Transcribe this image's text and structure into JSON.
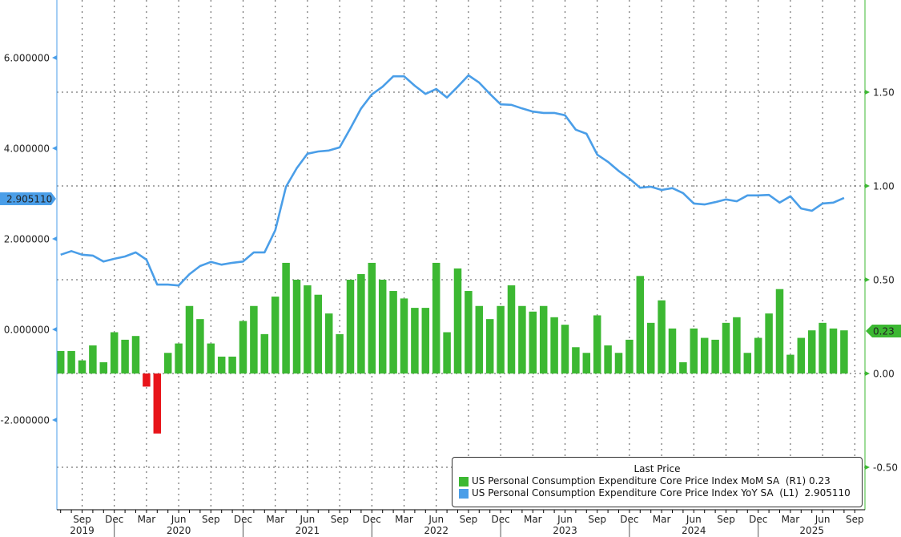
{
  "chart_data": {
    "type": "bar+line",
    "title": "",
    "colors": {
      "bars_positive": "#3cb832",
      "bars_negative": "#e8141a",
      "line": "#4a9ee8",
      "left_axis": "#4a9ee8",
      "right_axis": "#3cb832"
    },
    "x_start": "2019-07",
    "x_end": "2025-08",
    "left_axis": {
      "label": "L1",
      "ylim": [
        -3.0,
        7.0
      ],
      "ticks": [
        "6.000000",
        "4.000000",
        "2.000000",
        "0.000000",
        "-2.000000"
      ],
      "tick_values": [
        6,
        4,
        2,
        0,
        -2
      ]
    },
    "right_axis": {
      "label": "R1",
      "ylim": [
        -0.72,
        1.99
      ],
      "ticks": [
        "1.50",
        "1.00",
        "0.50",
        "0.00",
        "-0.50"
      ],
      "tick_values": [
        1.5,
        1.0,
        0.5,
        0.0,
        -0.5
      ]
    },
    "x_month_labels": [
      "Sep",
      "Dec",
      "Mar",
      "Jun",
      "Sep",
      "Dec",
      "Mar",
      "Jun",
      "Sep",
      "Dec",
      "Mar",
      "Jun",
      "Sep",
      "Dec",
      "Mar",
      "Jun",
      "Sep",
      "Dec",
      "Mar",
      "Jun",
      "Sep",
      "Dec",
      "Mar",
      "Jun",
      "Sep"
    ],
    "x_month_indices": [
      2,
      5,
      8,
      11,
      14,
      17,
      20,
      23,
      26,
      29,
      32,
      35,
      38,
      41,
      44,
      47,
      50,
      53,
      56,
      59,
      62,
      65,
      68,
      71,
      74
    ],
    "x_year_labels": [
      "2019",
      "2020",
      "2021",
      "2022",
      "2023",
      "2024",
      "2025"
    ],
    "x_year_center_indices": [
      2,
      11,
      23,
      35,
      47,
      59,
      70
    ],
    "x_year_separator_indices": [
      5,
      17,
      29,
      41,
      53,
      65
    ],
    "series": [
      {
        "name": "US Personal Consumption Expenditure Core Price Index MoM SA",
        "axis": "R1",
        "kind": "bar",
        "last_value": "0.23",
        "values": [
          0.12,
          0.12,
          0.07,
          0.15,
          0.06,
          0.22,
          0.18,
          0.2,
          -0.07,
          -0.32,
          0.11,
          0.16,
          0.36,
          0.29,
          0.16,
          0.09,
          0.09,
          0.28,
          0.36,
          0.21,
          0.41,
          0.59,
          0.5,
          0.47,
          0.42,
          0.32,
          0.21,
          0.5,
          0.53,
          0.59,
          0.5,
          0.44,
          0.4,
          0.35,
          0.35,
          0.59,
          0.22,
          0.56,
          0.44,
          0.36,
          0.29,
          0.36,
          0.47,
          0.36,
          0.33,
          0.36,
          0.3,
          0.26,
          0.14,
          0.11,
          0.31,
          0.15,
          0.11,
          0.18,
          0.52,
          0.27,
          0.39,
          0.24,
          0.06,
          0.24,
          0.19,
          0.18,
          0.27,
          0.3,
          0.11,
          0.19,
          0.32,
          0.45,
          0.1,
          0.19,
          0.23,
          0.27,
          0.24,
          0.23
        ]
      },
      {
        "name": "US Personal Consumption Expenditure Core Price Index YoY SA",
        "axis": "L1",
        "kind": "line",
        "last_value": "2.905110",
        "values": [
          1.65,
          1.73,
          1.65,
          1.63,
          1.5,
          1.56,
          1.61,
          1.7,
          1.54,
          0.99,
          0.99,
          0.97,
          1.22,
          1.4,
          1.49,
          1.43,
          1.47,
          1.5,
          1.7,
          1.7,
          2.19,
          3.15,
          3.56,
          3.88,
          3.93,
          3.95,
          4.02,
          4.44,
          4.88,
          5.19,
          5.36,
          5.59,
          5.59,
          5.38,
          5.2,
          5.31,
          5.12,
          5.36,
          5.61,
          5.45,
          5.2,
          4.97,
          4.96,
          4.88,
          4.81,
          4.78,
          4.78,
          4.73,
          4.41,
          4.32,
          3.86,
          3.7,
          3.5,
          3.33,
          3.13,
          3.15,
          3.08,
          3.12,
          3.01,
          2.78,
          2.76,
          2.81,
          2.87,
          2.83,
          2.96,
          2.96,
          2.97,
          2.8,
          2.94,
          2.67,
          2.62,
          2.78,
          2.8,
          2.905
        ]
      }
    ],
    "legend": {
      "title": "Last Price",
      "rows": [
        {
          "name": "US Personal Consumption Expenditure Core Price Index MoM SA",
          "axis": "(R1)",
          "value": "0.23"
        },
        {
          "name": "US Personal Consumption Expenditure Core Price Index YoY SA",
          "axis": "(L1)",
          "value": "2.905110"
        }
      ],
      "placement": "bottom-right"
    },
    "last_price_tags": {
      "left": "2.905110",
      "right": "0.23"
    }
  }
}
